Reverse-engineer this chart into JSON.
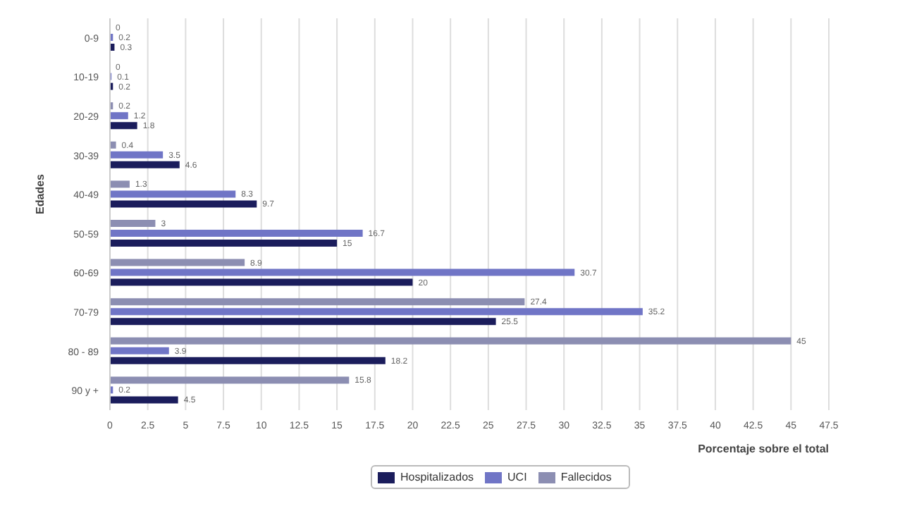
{
  "chart_data": {
    "type": "bar",
    "orientation": "horizontal",
    "xlabel": "Porcentaje sobre el total",
    "ylabel": "Edades",
    "categories": [
      "0-9",
      "10-19",
      "20-29",
      "30-39",
      "40-49",
      "50-59",
      "60-69",
      "70-79",
      "80 - 89",
      "90 y +"
    ],
    "series": [
      {
        "name": "Hospitalizados",
        "color": "#1b1d5c",
        "values": [
          0.3,
          0.2,
          1.8,
          4.6,
          9.7,
          15,
          20,
          25.5,
          18.2,
          4.5
        ]
      },
      {
        "name": "UCI",
        "color": "#7075c6",
        "values": [
          0.2,
          0.1,
          1.2,
          3.5,
          8.3,
          16.7,
          30.7,
          35.2,
          3.9,
          0.2
        ]
      },
      {
        "name": "Fallecidos",
        "color": "#8c8eb2",
        "values": [
          0,
          0,
          0.2,
          0.4,
          1.3,
          3,
          8.9,
          27.4,
          45,
          15.8
        ]
      }
    ],
    "xlim": [
      0,
      47.5
    ],
    "xticks": [
      0,
      2.5,
      5,
      7.5,
      10,
      12.5,
      15,
      17.5,
      20,
      22.5,
      25,
      27.5,
      30,
      32.5,
      35,
      37.5,
      40,
      42.5,
      45,
      47.5
    ],
    "grid": "x",
    "legend": "bottom",
    "data_labels": true
  }
}
